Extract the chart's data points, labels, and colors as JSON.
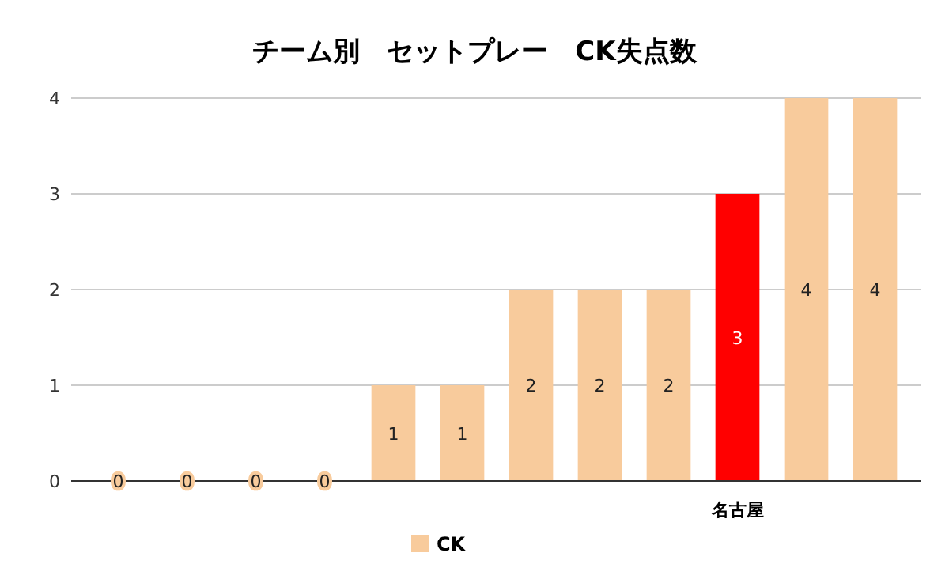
{
  "chart_data": {
    "type": "bar",
    "title": "チーム別　セットプレー　CK失点数",
    "categories": [
      null,
      null,
      null,
      null,
      null,
      null,
      null,
      null,
      null,
      "名古屋",
      null,
      null
    ],
    "series": [
      {
        "name": "CK",
        "color": "#f8cb9c",
        "colors": [
          "#f8cb9c",
          "#f8cb9c",
          "#f8cb9c",
          "#f8cb9c",
          "#f8cb9c",
          "#f8cb9c",
          "#f8cb9c",
          "#f8cb9c",
          "#f8cb9c",
          "#ff0000",
          "#f8cb9c",
          "#f8cb9c"
        ],
        "values": [
          0,
          0,
          0,
          0,
          1,
          1,
          2,
          2,
          2,
          3,
          4,
          4
        ]
      }
    ],
    "ylim": [
      0,
      4
    ],
    "yticks": [
      0,
      1,
      2,
      3,
      4
    ],
    "grid": "y",
    "legend": "bottom",
    "data_labels": true
  }
}
